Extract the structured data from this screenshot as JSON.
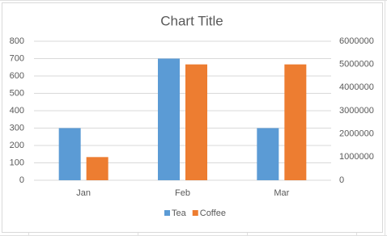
{
  "chart_data": {
    "type": "bar",
    "title": "Chart Title",
    "categories": [
      "Jan",
      "Feb",
      "Mar"
    ],
    "series": [
      {
        "name": "Tea",
        "color": "#5b9bd5",
        "values": [
          300,
          700,
          300
        ]
      },
      {
        "name": "Coffee",
        "color": "#ed7d31",
        "axis": "y2",
        "values": [
          1000000,
          5000000,
          5000000
        ]
      }
    ],
    "ylim": [
      0,
      800
    ],
    "yticks": [
      0,
      100,
      200,
      300,
      400,
      500,
      600,
      700,
      800
    ],
    "y2lim": [
      0,
      6000000
    ],
    "y2ticks": [
      0,
      1000000,
      2000000,
      3000000,
      4000000,
      5000000,
      6000000
    ],
    "grid": true,
    "legend": "bottom"
  }
}
